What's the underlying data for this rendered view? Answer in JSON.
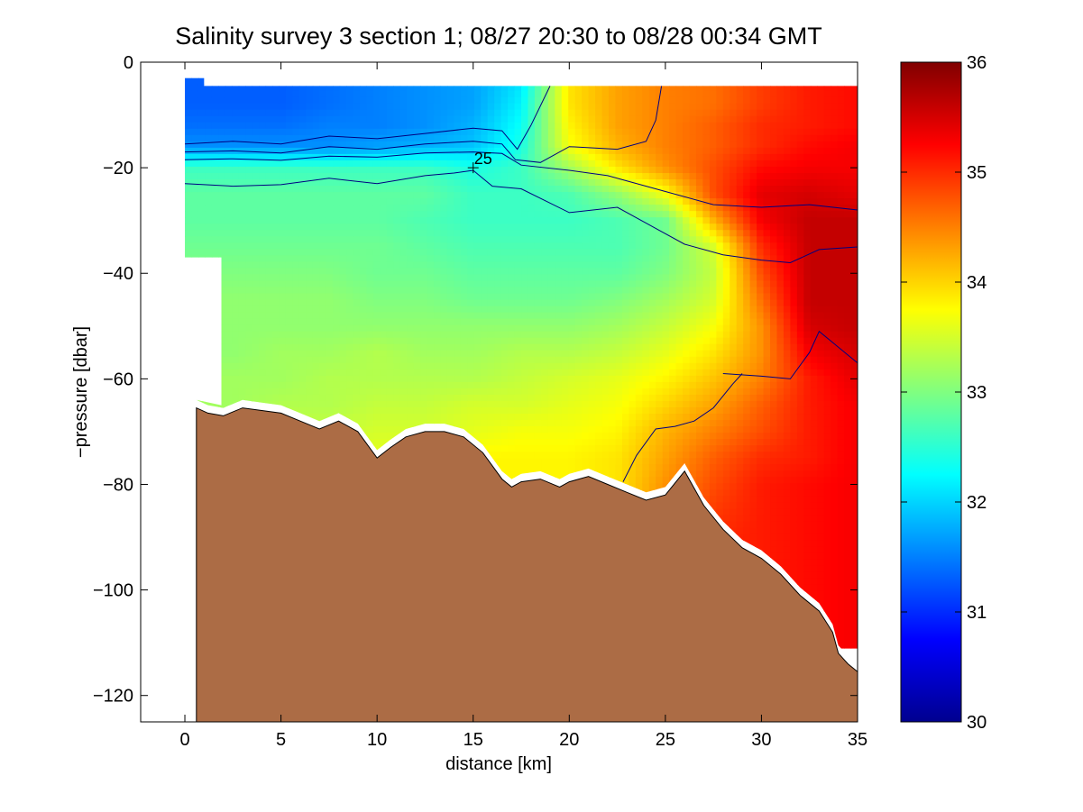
{
  "chart_data": {
    "type": "heatmap",
    "title": "Salinity survey 3 section 1; 08/27 20:30 to 08/28 00:34 GMT",
    "xlabel": "distance [km]",
    "ylabel": "−pressure [dbar]",
    "xlim": [
      -2.3,
      35
    ],
    "ylim": [
      -125,
      0
    ],
    "xticks": [
      0,
      5,
      10,
      15,
      20,
      25,
      30,
      35
    ],
    "yticks": [
      0,
      -20,
      -40,
      -60,
      -80,
      -100,
      -120
    ],
    "colorbar": {
      "range": [
        30,
        36
      ],
      "ticks": [
        30,
        31,
        32,
        33,
        34,
        35,
        36
      ],
      "colormap": [
        "#00008f",
        "#0000ff",
        "#0080ff",
        "#00ffff",
        "#80ff80",
        "#ffff00",
        "#ff8000",
        "#ff0000",
        "#800000"
      ]
    },
    "contour_label": "25",
    "colors": {
      "seabed": "#ac6c45",
      "contour": "#000080"
    },
    "data_extent": {
      "x": [
        0,
        35
      ],
      "y": [
        -4.5,
        -108
      ]
    },
    "salinity_grid": {
      "x": [
        0,
        2.5,
        5,
        7.5,
        10,
        12.5,
        15,
        17.5,
        20,
        22.5,
        25,
        27.5,
        30,
        32.5,
        35
      ],
      "y": [
        -4,
        -8,
        -12,
        -16,
        -20,
        -25,
        -30,
        -35,
        -40,
        -45,
        -50,
        -55,
        -60,
        -65,
        -70,
        -75,
        -80,
        -85,
        -90,
        -95,
        -100,
        -105
      ],
      "z": [
        [
          31.3,
          31.3,
          31.3,
          31.4,
          31.5,
          31.6,
          31.7,
          32.1,
          33.9,
          34.3,
          34.5,
          34.6,
          34.9,
          35.1,
          35.2
        ],
        [
          31.3,
          31.3,
          31.3,
          31.4,
          31.5,
          31.6,
          31.7,
          32.2,
          33.9,
          34.3,
          34.5,
          34.6,
          34.9,
          35.1,
          35.2
        ],
        [
          31.4,
          31.4,
          31.4,
          31.5,
          31.5,
          31.6,
          31.8,
          32.3,
          33.8,
          34.3,
          34.5,
          34.7,
          35.0,
          35.1,
          35.2
        ],
        [
          31.6,
          31.6,
          31.6,
          31.6,
          31.7,
          31.8,
          31.9,
          32.4,
          33.7,
          34.2,
          34.5,
          34.7,
          35.0,
          35.2,
          35.3
        ],
        [
          32.6,
          32.6,
          32.6,
          32.6,
          32.6,
          32.6,
          32.4,
          32.6,
          33.2,
          33.9,
          34.4,
          34.8,
          35.2,
          35.3,
          35.3
        ],
        [
          32.8,
          32.8,
          32.8,
          32.8,
          32.8,
          32.8,
          32.6,
          32.6,
          32.7,
          33.1,
          33.7,
          34.8,
          35.4,
          35.5,
          35.4
        ],
        [
          32.8,
          32.8,
          32.8,
          32.8,
          32.8,
          32.7,
          32.6,
          32.6,
          32.6,
          32.7,
          32.9,
          34.2,
          35.3,
          35.6,
          35.6
        ],
        [
          32.9,
          32.9,
          32.9,
          32.9,
          32.9,
          32.8,
          32.7,
          32.7,
          32.7,
          32.7,
          32.9,
          33.5,
          35.0,
          35.6,
          35.6
        ],
        [
          33.0,
          33.0,
          33.0,
          33.0,
          32.9,
          32.9,
          32.8,
          32.8,
          32.8,
          32.8,
          33.0,
          33.4,
          34.8,
          35.6,
          35.6
        ],
        [
          33.1,
          33.1,
          33.1,
          33.1,
          33.0,
          33.0,
          32.9,
          32.9,
          32.9,
          33.0,
          33.2,
          33.5,
          34.6,
          35.6,
          35.6
        ],
        [
          33.1,
          33.1,
          33.1,
          33.1,
          33.1,
          33.1,
          33.1,
          33.1,
          33.1,
          33.2,
          33.4,
          33.7,
          34.4,
          35.5,
          35.6
        ],
        [
          33.1,
          33.1,
          33.2,
          33.2,
          33.3,
          33.2,
          33.2,
          33.3,
          33.3,
          33.4,
          33.6,
          33.9,
          34.4,
          35.3,
          35.5
        ],
        [
          33.2,
          33.2,
          33.2,
          33.3,
          33.3,
          33.3,
          33.3,
          33.4,
          33.5,
          33.6,
          33.8,
          34.1,
          34.5,
          35.1,
          35.4
        ],
        [
          33.2,
          33.2,
          33.3,
          33.3,
          33.4,
          33.4,
          33.5,
          33.5,
          33.6,
          33.7,
          34.0,
          34.3,
          34.7,
          35.1,
          35.3
        ],
        [
          33.3,
          33.3,
          33.4,
          33.4,
          33.5,
          33.5,
          33.6,
          33.7,
          33.7,
          33.8,
          34.2,
          34.5,
          34.8,
          35.1,
          35.3
        ],
        [
          33.3,
          33.3,
          33.4,
          33.5,
          33.6,
          33.7,
          33.8,
          33.8,
          33.8,
          33.9,
          34.3,
          34.7,
          35.0,
          35.1,
          35.3
        ],
        [
          33.3,
          33.3,
          33.4,
          33.5,
          33.6,
          33.7,
          33.8,
          33.8,
          33.8,
          33.9,
          34.4,
          34.8,
          35.1,
          35.2,
          35.3
        ],
        [
          33.3,
          33.3,
          33.4,
          33.5,
          33.6,
          33.7,
          33.8,
          33.8,
          33.8,
          33.9,
          34.5,
          34.9,
          35.1,
          35.2,
          35.3
        ],
        [
          33.3,
          33.3,
          33.4,
          33.5,
          33.6,
          33.7,
          33.8,
          33.8,
          33.8,
          33.9,
          34.5,
          35.0,
          35.1,
          35.2,
          35.3
        ],
        [
          33.3,
          33.3,
          33.4,
          33.5,
          33.6,
          33.7,
          33.8,
          33.8,
          33.8,
          33.9,
          34.5,
          35.0,
          35.1,
          35.2,
          35.3
        ],
        [
          33.3,
          33.3,
          33.4,
          33.5,
          33.6,
          33.7,
          33.8,
          33.8,
          33.8,
          33.9,
          34.5,
          35.0,
          35.1,
          35.2,
          35.3
        ],
        [
          33.3,
          33.3,
          33.4,
          33.5,
          33.6,
          33.7,
          33.8,
          33.8,
          33.8,
          33.9,
          34.5,
          35.0,
          35.1,
          35.2,
          35.3
        ]
      ]
    },
    "seabed_profile": {
      "x": [
        0.6,
        1.2,
        2.0,
        3.0,
        4.0,
        5.0,
        6.0,
        7.0,
        8.0,
        9.0,
        10.0,
        10.7,
        11.5,
        12.5,
        13.5,
        14.5,
        15.5,
        16.5,
        17.0,
        17.5,
        18.5,
        19.5,
        20.0,
        21.0,
        22.0,
        23.0,
        24.0,
        25.0,
        26.0,
        27.0,
        28.0,
        29.0,
        30.0,
        31.0,
        32.0,
        33.0,
        33.7,
        34.0,
        34.5,
        35.0
      ],
      "depth": [
        -65.5,
        -66.5,
        -67,
        -65.5,
        -66,
        -66.5,
        -68,
        -69.5,
        -68,
        -70,
        -75,
        -73,
        -71,
        -70,
        -70,
        -71,
        -74,
        -79,
        -80.5,
        -79.5,
        -79,
        -80.5,
        -79.5,
        -78.5,
        -80,
        -81.5,
        -83,
        -82,
        -77.5,
        -84,
        -88.5,
        -92,
        -94,
        -97,
        -101,
        -104,
        -108,
        -112,
        -114,
        -115.5
      ]
    },
    "missing_data_mask": {
      "left_upper_gap": {
        "x": [
          0,
          1.9
        ],
        "y": [
          -37,
          -65
        ]
      },
      "top_left_notch": {
        "x": [
          1,
          35
        ],
        "y": [
          -3,
          -4.5
        ]
      }
    },
    "contours": [
      {
        "x": [
          0,
          2.5,
          5,
          7.5,
          10,
          12.5,
          15,
          16.5,
          17.3,
          18.0,
          19.0
        ],
        "y": [
          -15.5,
          -15,
          -15.5,
          -14,
          -14.5,
          -13.5,
          -12.5,
          -13,
          -16.5,
          -12,
          -4.5
        ]
      },
      {
        "x": [
          0,
          2.5,
          5,
          7.5,
          10,
          12.5,
          15,
          16.5,
          17.2,
          18.5,
          20.0,
          22.5,
          24.0,
          24.5,
          24.8
        ],
        "y": [
          -17,
          -16.8,
          -17.2,
          -16,
          -16.5,
          -15.5,
          -15,
          -15.5,
          -18.5,
          -19,
          -16,
          -16.5,
          -15,
          -11,
          -4.5
        ]
      },
      {
        "x": [
          0,
          2.5,
          5,
          7.5,
          10,
          12.5,
          15,
          16.5,
          17.5,
          20.0,
          22.0,
          25.0,
          27.5,
          30.0,
          32.5,
          35.0
        ],
        "y": [
          -18.5,
          -18.3,
          -18.6,
          -17.8,
          -18,
          -17.2,
          -17,
          -17.3,
          -19.5,
          -20.5,
          -21.5,
          -24.5,
          -27,
          -27.5,
          -27,
          -28
        ]
      },
      {
        "x": [
          0,
          2.5,
          5,
          7.5,
          10,
          12.5,
          14.0,
          15.0,
          16.0,
          17.5,
          20.0,
          22.5,
          24.0,
          26.0,
          28.0,
          30.0,
          31.5,
          33.0,
          35.0
        ],
        "y": [
          -23,
          -23.5,
          -23.2,
          -22,
          -23,
          -21.5,
          -21,
          -20.5,
          -23.5,
          -24,
          -28.5,
          -27.5,
          -30.5,
          -34.5,
          -36.5,
          -37.5,
          -38,
          -35.5,
          -35
        ]
      },
      {
        "x": [
          28.0,
          30.0,
          31.5,
          32.5,
          33.0,
          34.0,
          35.0
        ],
        "y": [
          -59,
          -59.5,
          -60,
          -55,
          -51,
          -54,
          -57
        ]
      },
      {
        "x": [
          22.8,
          23.5,
          24.5,
          25.5,
          26.5,
          27.5,
          28.5,
          29.0
        ],
        "y": [
          -79.5,
          -74.5,
          -69.5,
          -69,
          -68,
          -65.5,
          -61,
          -59
        ]
      }
    ]
  }
}
